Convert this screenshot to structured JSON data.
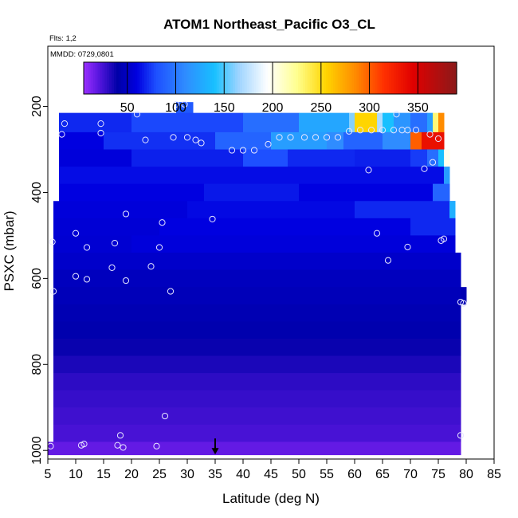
{
  "chart_data": {
    "type": "heatmap",
    "title": "ATOM1 Northeast_Pacific O3_CL",
    "annotations": {
      "flights": "Flts: 1,2",
      "dates": "MMDD: 0729,0801"
    },
    "xlabel": "Latitude (deg N)",
    "ylabel": "PSXC (mbar)",
    "xlim": [
      5,
      85
    ],
    "ylim": [
      1020,
      60
    ],
    "y_reversed": true,
    "x_ticks": [
      5,
      10,
      15,
      20,
      25,
      30,
      35,
      40,
      45,
      50,
      55,
      60,
      65,
      70,
      75,
      80,
      85
    ],
    "y_ticks": [
      200,
      400,
      600,
      800,
      1000
    ],
    "colorbar": {
      "range": [
        5,
        390
      ],
      "ticks": [
        50,
        100,
        150,
        200,
        250,
        300,
        350
      ],
      "stops": [
        {
          "v": 5,
          "c": "#9b30ff"
        },
        {
          "v": 20,
          "c": "#5a17e0"
        },
        {
          "v": 40,
          "c": "#0000a8"
        },
        {
          "v": 60,
          "c": "#0000e0"
        },
        {
          "v": 80,
          "c": "#1e50ff"
        },
        {
          "v": 110,
          "c": "#2f8cff"
        },
        {
          "v": 140,
          "c": "#18c0ff"
        },
        {
          "v": 165,
          "c": "#9ed4ff"
        },
        {
          "v": 195,
          "c": "#ffffff"
        },
        {
          "v": 225,
          "c": "#ffff90"
        },
        {
          "v": 255,
          "c": "#ffd500"
        },
        {
          "v": 285,
          "c": "#ff8c00"
        },
        {
          "v": 315,
          "c": "#ff3000"
        },
        {
          "v": 345,
          "c": "#e00000"
        },
        {
          "v": 390,
          "c": "#8b1a1a"
        }
      ]
    },
    "marker": {
      "latitude": 35,
      "pressure": 1000
    },
    "layers": [
      {
        "p": [
          190,
          215
        ],
        "segs": [
          [
            28,
            31,
            85
          ]
        ]
      },
      {
        "p": [
          215,
          260
        ],
        "segs": [
          [
            7,
            20,
            70
          ],
          [
            20,
            40,
            78
          ],
          [
            40,
            50,
            95
          ],
          [
            50,
            59,
            125
          ],
          [
            59,
            60,
            160
          ],
          [
            60,
            64,
            255
          ],
          [
            64,
            65,
            170
          ],
          [
            65,
            67,
            140
          ],
          [
            67,
            70,
            115
          ],
          [
            70,
            73,
            95
          ],
          [
            73,
            74,
            120
          ],
          [
            74,
            75,
            230
          ],
          [
            75,
            76,
            285
          ]
        ]
      },
      {
        "p": [
          260,
          300
        ],
        "segs": [
          [
            7,
            15,
            60
          ],
          [
            15,
            35,
            72
          ],
          [
            35,
            45,
            90
          ],
          [
            45,
            55,
            120
          ],
          [
            55,
            58,
            110
          ],
          [
            58,
            65,
            90
          ],
          [
            65,
            70,
            110
          ],
          [
            70,
            72,
            300
          ],
          [
            72,
            76,
            335
          ]
        ]
      },
      {
        "p": [
          300,
          340
        ],
        "segs": [
          [
            7,
            20,
            58
          ],
          [
            20,
            40,
            68
          ],
          [
            40,
            48,
            80
          ],
          [
            48,
            60,
            70
          ],
          [
            60,
            70,
            68
          ],
          [
            70,
            73,
            75
          ],
          [
            73,
            75,
            95
          ],
          [
            75,
            76,
            140
          ],
          [
            76,
            77,
            200
          ]
        ]
      },
      {
        "p": [
          340,
          380
        ],
        "segs": [
          [
            7,
            76,
            63
          ],
          [
            76,
            77,
            120
          ]
        ]
      },
      {
        "p": [
          380,
          420
        ],
        "segs": [
          [
            7,
            33,
            60
          ],
          [
            33,
            50,
            66
          ],
          [
            50,
            74,
            60
          ],
          [
            74,
            77,
            90
          ]
        ]
      },
      {
        "p": [
          420,
          460
        ],
        "segs": [
          [
            6,
            30,
            58
          ],
          [
            30,
            60,
            62
          ],
          [
            60,
            78,
            70
          ],
          [
            77,
            78,
            130
          ]
        ]
      },
      {
        "p": [
          460,
          500
        ],
        "segs": [
          [
            6,
            25,
            56
          ],
          [
            25,
            50,
            60
          ],
          [
            50,
            70,
            60
          ],
          [
            70,
            78,
            70
          ]
        ]
      },
      {
        "p": [
          500,
          540
        ],
        "segs": [
          [
            6,
            20,
            55
          ],
          [
            20,
            60,
            58
          ],
          [
            60,
            78,
            58
          ]
        ]
      },
      {
        "p": [
          540,
          580
        ],
        "segs": [
          [
            6,
            79,
            52
          ]
        ]
      },
      {
        "p": [
          580,
          620
        ],
        "segs": [
          [
            6,
            79,
            48
          ]
        ]
      },
      {
        "p": [
          620,
          660
        ],
        "segs": [
          [
            6,
            79,
            46
          ],
          [
            79,
            80,
            44
          ]
        ]
      },
      {
        "p": [
          660,
          700
        ],
        "segs": [
          [
            6,
            79,
            44
          ]
        ]
      },
      {
        "p": [
          700,
          740
        ],
        "segs": [
          [
            6,
            79,
            42
          ]
        ]
      },
      {
        "p": [
          740,
          780
        ],
        "segs": [
          [
            6,
            79,
            38
          ]
        ]
      },
      {
        "p": [
          780,
          820
        ],
        "segs": [
          [
            6,
            79,
            34
          ]
        ]
      },
      {
        "p": [
          820,
          860
        ],
        "segs": [
          [
            6,
            79,
            30
          ]
        ]
      },
      {
        "p": [
          860,
          900
        ],
        "segs": [
          [
            6,
            79,
            28
          ]
        ]
      },
      {
        "p": [
          900,
          940
        ],
        "segs": [
          [
            6,
            79,
            26
          ]
        ]
      },
      {
        "p": [
          940,
          980
        ],
        "segs": [
          [
            6,
            79,
            24
          ]
        ]
      },
      {
        "p": [
          980,
          1010
        ],
        "segs": [
          [
            5,
            79,
            18
          ]
        ]
      }
    ],
    "points": [
      [
        28,
        195
      ],
      [
        29.5,
        195
      ],
      [
        8,
        240
      ],
      [
        14.5,
        240
      ],
      [
        21,
        218
      ],
      [
        67.5,
        218
      ],
      [
        7.5,
        265
      ],
      [
        14.5,
        262
      ],
      [
        22.5,
        278
      ],
      [
        27.5,
        272
      ],
      [
        30,
        272
      ],
      [
        31.5,
        278
      ],
      [
        32.5,
        285
      ],
      [
        38,
        302
      ],
      [
        40,
        302
      ],
      [
        42,
        302
      ],
      [
        44.5,
        288
      ],
      [
        46.5,
        272
      ],
      [
        48.5,
        272
      ],
      [
        51,
        272
      ],
      [
        53,
        272
      ],
      [
        55,
        272
      ],
      [
        57,
        272
      ],
      [
        59,
        258
      ],
      [
        61,
        255
      ],
      [
        63,
        255
      ],
      [
        65,
        255
      ],
      [
        67,
        255
      ],
      [
        68.5,
        255
      ],
      [
        69.5,
        255
      ],
      [
        71,
        255
      ],
      [
        73.5,
        265
      ],
      [
        75,
        275
      ],
      [
        62.5,
        348
      ],
      [
        72.5,
        345
      ],
      [
        74,
        330
      ],
      [
        19,
        450
      ],
      [
        25.5,
        470
      ],
      [
        34.5,
        462
      ],
      [
        10,
        495
      ],
      [
        64,
        495
      ],
      [
        5.8,
        515
      ],
      [
        17,
        518
      ],
      [
        12,
        528
      ],
      [
        25,
        528
      ],
      [
        69.5,
        527
      ],
      [
        75.5,
        512
      ],
      [
        76,
        508
      ],
      [
        66,
        558
      ],
      [
        23.5,
        572
      ],
      [
        16.5,
        575
      ],
      [
        10,
        595
      ],
      [
        12,
        602
      ],
      [
        19,
        605
      ],
      [
        27,
        630
      ],
      [
        6,
        630
      ],
      [
        79,
        655
      ],
      [
        79.5,
        658
      ],
      [
        26,
        920
      ],
      [
        18,
        965
      ],
      [
        79,
        965
      ],
      [
        5.5,
        990
      ],
      [
        11,
        988
      ],
      [
        11.5,
        985
      ],
      [
        17.5,
        988
      ],
      [
        18.5,
        993
      ],
      [
        24.5,
        990
      ]
    ]
  }
}
